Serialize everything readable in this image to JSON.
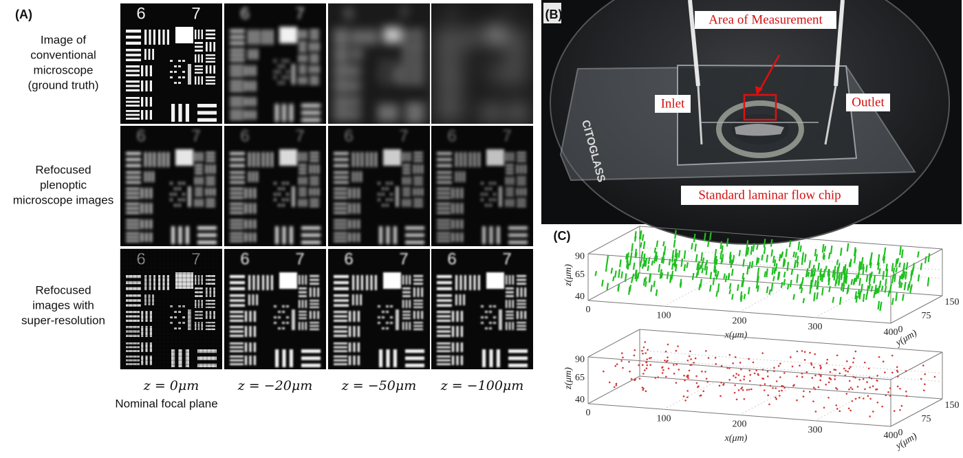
{
  "panel_a": {
    "label": "(A)",
    "row_labels": [
      [
        "Image of",
        "conventional",
        "microscope",
        "(ground truth)"
      ],
      [
        "Refocused",
        "plenoptic",
        "microscope images"
      ],
      [
        "Refocused",
        "images with",
        "super-resolution"
      ]
    ],
    "target_digits": [
      "6",
      "7"
    ],
    "column_labels": [
      "z = 0μm",
      "z = −20μm",
      "z = −50μm",
      "z = −100μm"
    ],
    "column_note": "Nominal focal plane"
  },
  "panel_b": {
    "label": "(B)",
    "chip_text": "CITOGLASS",
    "annotations": {
      "area": "Area of Measurement",
      "inlet": "Inlet",
      "outlet": "Outlet",
      "chip": "Standard laminar flow chip"
    }
  },
  "panel_c": {
    "label": "(C)",
    "plots": [
      {
        "z_label": "z(μm)",
        "x_label": "x(μm)",
        "y_label": "y(μm)",
        "z_ticks": [
          "90",
          "65",
          "40"
        ],
        "x_ticks": [
          "0",
          "100",
          "200",
          "300",
          "400"
        ],
        "y_ticks": [
          "0",
          "75",
          "150"
        ]
      },
      {
        "z_label": "z(μm)",
        "x_label": "x(μm)",
        "y_label": "y(μm)",
        "z_ticks": [
          "90",
          "65",
          "40"
        ],
        "x_ticks": [
          "0",
          "100",
          "200",
          "300",
          "400"
        ],
        "y_ticks": [
          "0",
          "75",
          "150"
        ]
      }
    ]
  }
}
